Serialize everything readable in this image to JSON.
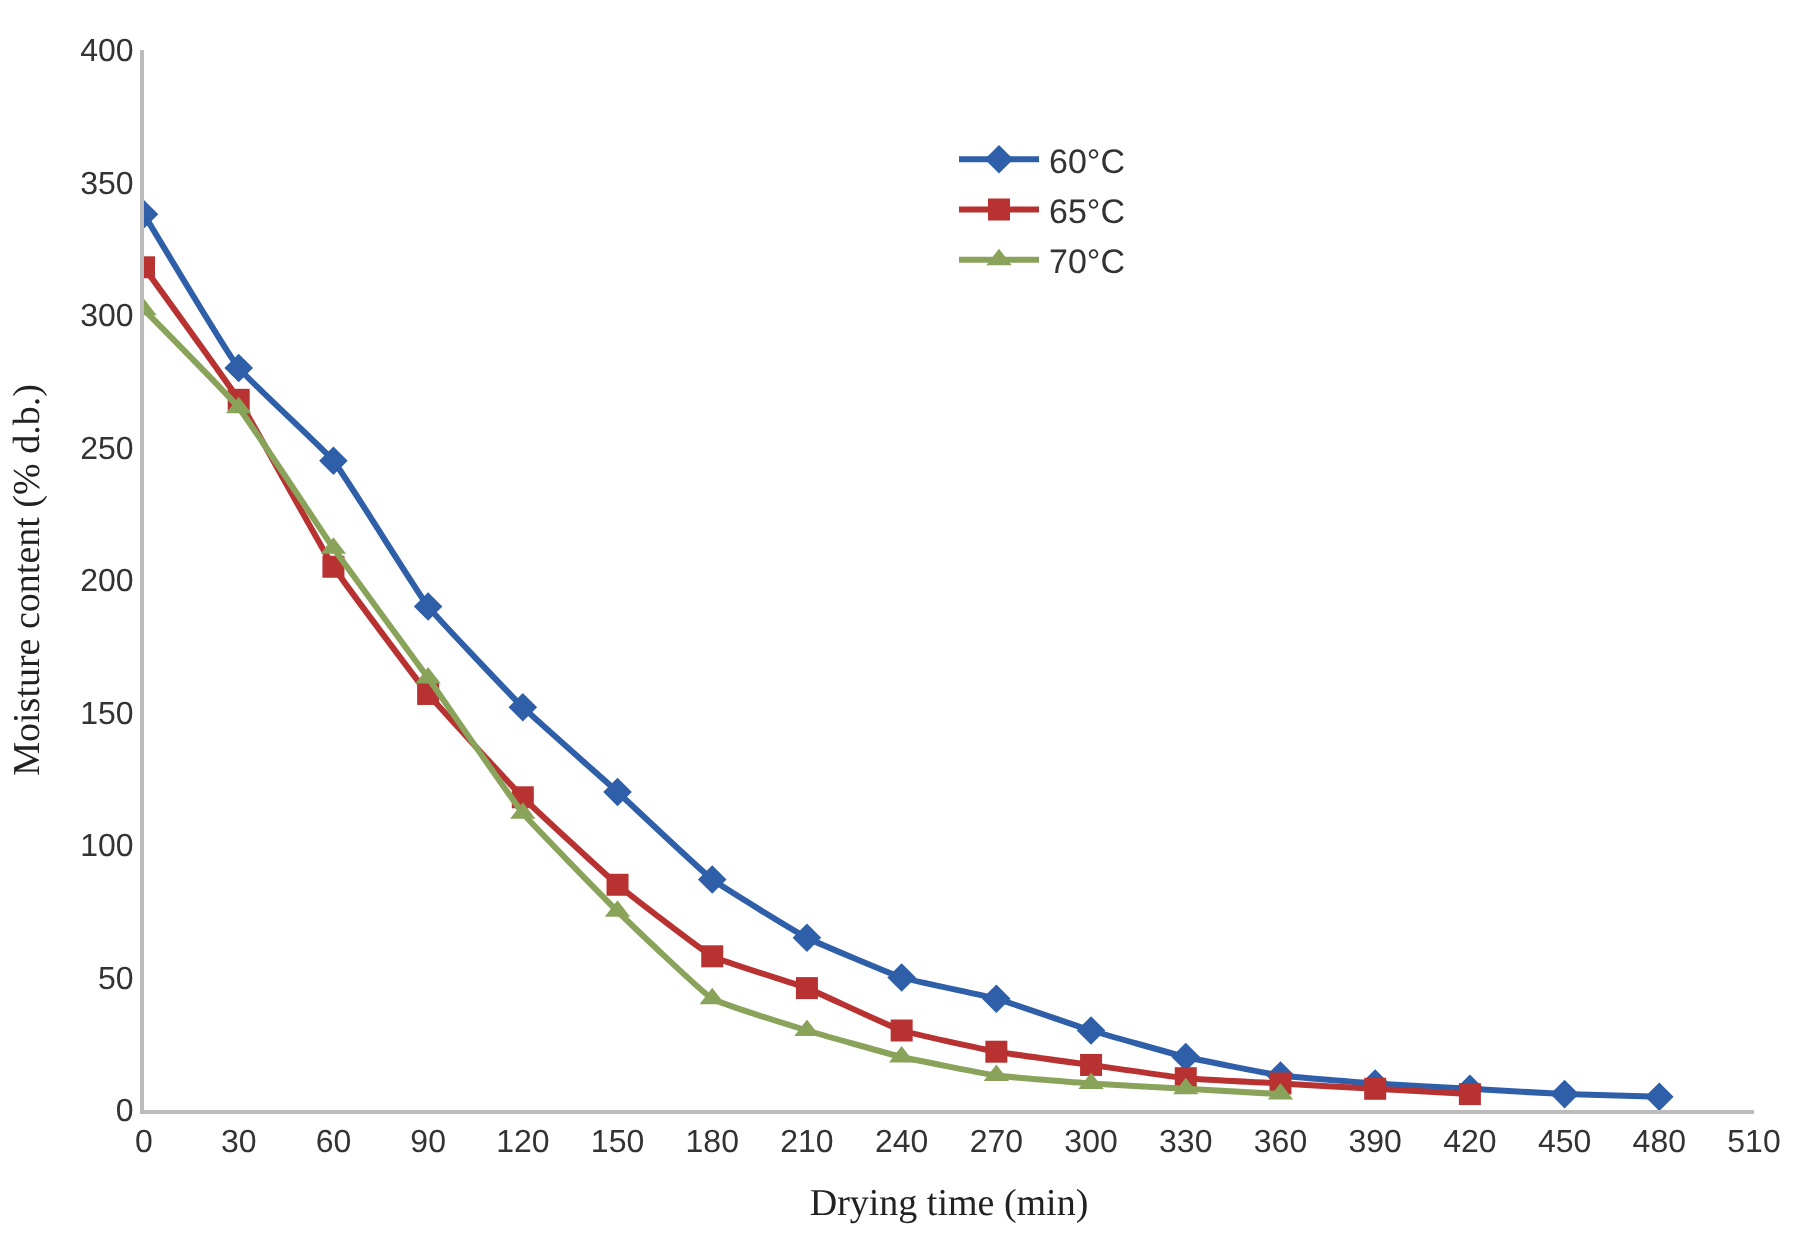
{
  "chart_data": {
    "type": "line",
    "xlabel": "Drying time (min)",
    "ylabel": "Moisture content (% d.b.)",
    "xlim": [
      0,
      510
    ],
    "xticks": [
      0,
      30,
      60,
      90,
      120,
      150,
      180,
      210,
      240,
      270,
      300,
      330,
      360,
      390,
      420,
      450,
      480,
      510
    ],
    "ylim": [
      0,
      400
    ],
    "yticks": [
      0,
      50,
      100,
      150,
      200,
      250,
      300,
      350,
      400
    ],
    "legend": "top right",
    "line_style": "solid",
    "series": [
      {
        "name": "60°C",
        "color": "#2e5fa8",
        "marker": "diamond",
        "x": [
          0,
          30,
          60,
          90,
          120,
          150,
          180,
          210,
          240,
          270,
          300,
          330,
          360,
          390,
          420,
          450,
          480
        ],
        "values": [
          338,
          280,
          245,
          190,
          152,
          120,
          87,
          65,
          50,
          42,
          30,
          20,
          13,
          10,
          8,
          6,
          5
        ]
      },
      {
        "name": "65°C",
        "color": "#b83232",
        "marker": "square",
        "x": [
          0,
          30,
          60,
          90,
          120,
          150,
          180,
          210,
          240,
          270,
          300,
          330,
          360,
          390,
          420
        ],
        "values": [
          318,
          268,
          205,
          157,
          118,
          85,
          58,
          46,
          30,
          22,
          17,
          12,
          10,
          8,
          6
        ]
      },
      {
        "name": "70°C",
        "color": "#8aa35a",
        "marker": "triangle",
        "x": [
          0,
          30,
          60,
          90,
          120,
          150,
          180,
          210,
          240,
          270,
          300,
          330,
          360
        ],
        "values": [
          302,
          265,
          212,
          163,
          112,
          75,
          42,
          30,
          20,
          13,
          10,
          8,
          6
        ]
      }
    ]
  }
}
